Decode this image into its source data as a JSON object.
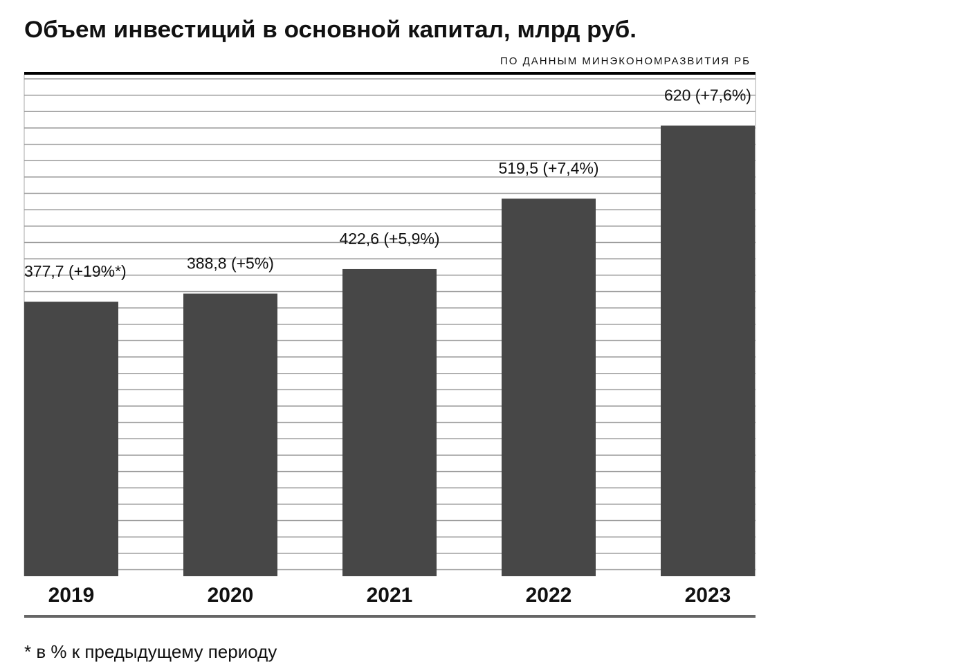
{
  "chart_data": {
    "type": "bar",
    "title": "Объем инвестиций в основной капитал, млрд руб.",
    "subtitle": "ПО ДАННЫМ МИНЭКОНОМРАЗВИТИЯ РБ",
    "categories": [
      "2019",
      "2020",
      "2021",
      "2022",
      "2023"
    ],
    "values": [
      377.7,
      388.8,
      422.6,
      519.5,
      620
    ],
    "value_labels": [
      "377,7 (+19%*)",
      "388,8 (+5%)",
      "422,6 (+5,9%)",
      "519,5 (+7,4%)",
      "620 (+7,6%)"
    ],
    "color": "#474747",
    "ylim": [
      0,
      690
    ],
    "grid": true,
    "note": "* в % к предыдущему периоду"
  }
}
